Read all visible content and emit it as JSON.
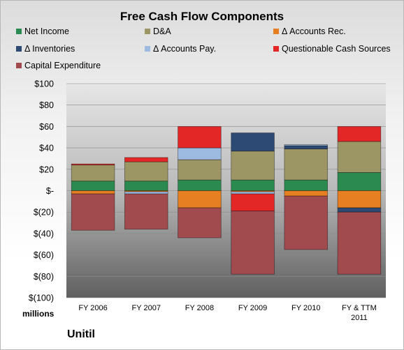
{
  "chart_data": {
    "type": "bar",
    "stacked": true,
    "title": "Free Cash Flow Components",
    "categories": [
      "FY 2006",
      "FY 2007",
      "FY 2008",
      "FY 2009",
      "FY 2010",
      "FY & TTM 2011"
    ],
    "units_label": "millions",
    "company": "Unitil",
    "ylim": [
      -100,
      100
    ],
    "yticks": [
      100,
      80,
      60,
      40,
      20,
      0,
      -20,
      -40,
      -60,
      -80,
      -100
    ],
    "ytick_labels": [
      "$100",
      "$80",
      "$60",
      "$40",
      "$20",
      "$-",
      "$(20)",
      "$(40)",
      "$(60)",
      "$(80)",
      "$(100)"
    ],
    "legend_placement": "top",
    "grid": true,
    "series": [
      {
        "name": "Net Income",
        "color": "#2b8a4f",
        "values": [
          9,
          9,
          10,
          10,
          10,
          17
        ]
      },
      {
        "name": "D&A",
        "color": "#9c9564",
        "values": [
          15,
          18,
          19,
          27,
          29,
          29
        ]
      },
      {
        "name": "Δ Accounts Rec.",
        "color": "#e67e22",
        "values": [
          -3,
          -1,
          -16,
          -1,
          -5,
          -16
        ]
      },
      {
        "name": "Δ Inventories",
        "color": "#2c4a73",
        "values": [
          0,
          0,
          0,
          17,
          3,
          -4
        ]
      },
      {
        "name": "Δ Accounts Pay.",
        "color": "#9dbbe0",
        "values": [
          0,
          -2,
          11,
          -2,
          1,
          0
        ]
      },
      {
        "name": "Questionable Cash Sources",
        "color": "#e32626",
        "values": [
          1,
          4,
          20,
          -16,
          0,
          14
        ]
      },
      {
        "name": "Capital Expenditure",
        "color": "#a24b4e",
        "values": [
          -34,
          -33,
          -28,
          -59,
          -50,
          -58
        ]
      }
    ]
  }
}
